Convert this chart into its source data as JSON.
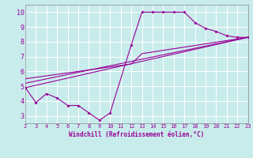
{
  "bg_color": "#c8ecec",
  "line_color": "#990099",
  "grid_color": "#ffffff",
  "xlabel": "Windchill (Refroidissement éolien,°C)",
  "xlim": [
    2,
    23
  ],
  "ylim": [
    2.5,
    10.5
  ],
  "xticks": [
    2,
    3,
    4,
    5,
    6,
    7,
    8,
    9,
    10,
    11,
    12,
    13,
    14,
    15,
    16,
    17,
    18,
    19,
    20,
    21,
    22,
    23
  ],
  "yticks": [
    3,
    4,
    5,
    6,
    7,
    8,
    9,
    10
  ],
  "series1_x": [
    2,
    3,
    4,
    5,
    6,
    7,
    8,
    9,
    10,
    12,
    13,
    14,
    15,
    16,
    17,
    18,
    19,
    20,
    21,
    22,
    23
  ],
  "series1_y": [
    4.9,
    3.9,
    4.5,
    4.2,
    3.7,
    3.7,
    3.2,
    2.7,
    3.2,
    7.8,
    10.0,
    10.0,
    10.0,
    10.0,
    10.0,
    9.3,
    8.9,
    8.7,
    8.4,
    8.3,
    8.3
  ],
  "series2_x": [
    2,
    23
  ],
  "series2_y": [
    4.9,
    8.3
  ],
  "series3_x": [
    2,
    23
  ],
  "series3_y": [
    5.2,
    8.3
  ],
  "series4_x": [
    2,
    12,
    13,
    23
  ],
  "series4_y": [
    5.5,
    6.5,
    7.2,
    8.3
  ]
}
